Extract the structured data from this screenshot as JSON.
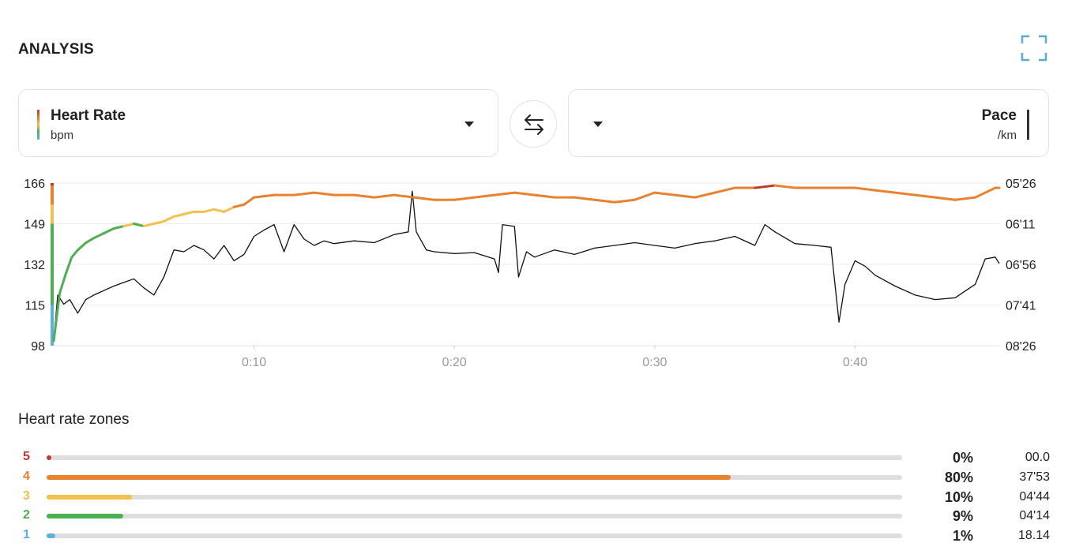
{
  "header": {
    "title": "ANALYSIS",
    "expand_icon": "expand-icon"
  },
  "selectors": {
    "left": {
      "name": "Heart Rate",
      "unit": "bpm"
    },
    "right": {
      "name": "Pace",
      "unit": "/km"
    },
    "swap_icon": "swap-arrows-icon"
  },
  "chart_data": {
    "type": "line",
    "x_ticks": [
      "0:10",
      "0:20",
      "0:30",
      "0:40"
    ],
    "x_tick_minutes": [
      10,
      20,
      30,
      40
    ],
    "x_range_minutes": [
      0,
      47.2
    ],
    "y_left": {
      "label": "Heart Rate",
      "unit": "bpm",
      "ticks": [
        "166",
        "149",
        "132",
        "115",
        "98"
      ],
      "range": [
        98,
        166
      ]
    },
    "y_right": {
      "label": "Pace",
      "unit": "/km",
      "ticks": [
        "05'26",
        "06'11",
        "06'56",
        "07'41",
        "08'26"
      ],
      "range_seconds_per_km": [
        326,
        506
      ]
    },
    "grid": true,
    "zone_colors": {
      "1": "#5bb0dc",
      "2": "#4caf50",
      "3": "#f2c14e",
      "4": "#e8822e",
      "5": "#c0392b"
    },
    "zone_bounds_bpm": [
      [
        98,
        115
      ],
      [
        115,
        149
      ],
      [
        149,
        157
      ],
      [
        157,
        165
      ],
      [
        165,
        166
      ]
    ],
    "series": [
      {
        "name": "Heart Rate",
        "color_by_zone": true,
        "x_minutes": [
          0,
          0.3,
          0.6,
          0.9,
          1.2,
          1.6,
          2.0,
          2.5,
          3.0,
          3.5,
          4.0,
          4.5,
          5.0,
          5.5,
          6.0,
          6.5,
          7.0,
          7.5,
          8.0,
          8.5,
          9.0,
          9.5,
          10.0,
          11.0,
          12.0,
          13.0,
          14.0,
          15.0,
          16.0,
          17.0,
          18.0,
          19.0,
          20.0,
          21.0,
          22.0,
          23.0,
          24.0,
          25.0,
          26.0,
          27.0,
          28.0,
          29.0,
          30.0,
          31.0,
          32.0,
          33.0,
          34.0,
          35.0,
          36.0,
          37.0,
          38.0,
          39.0,
          40.0,
          41.0,
          42.0,
          43.0,
          44.0,
          45.0,
          46.0,
          47.0,
          47.2
        ],
        "y_bpm": [
          100,
          120,
          128,
          135,
          138,
          141,
          143,
          145,
          147,
          148,
          149,
          148,
          149,
          150,
          152,
          153,
          154,
          154,
          155,
          154,
          156,
          157,
          160,
          161,
          161,
          162,
          161,
          161,
          160,
          161,
          160,
          159,
          159,
          160,
          161,
          162,
          161,
          160,
          160,
          159,
          158,
          159,
          162,
          161,
          160,
          162,
          164,
          164,
          165,
          164,
          164,
          164,
          164,
          163,
          162,
          161,
          160,
          159,
          160,
          164,
          164
        ]
      },
      {
        "name": "Pace",
        "x_minutes": [
          0,
          0.2,
          0.5,
          0.8,
          1.2,
          1.6,
          2.0,
          2.5,
          3.0,
          3.5,
          4.0,
          4.5,
          5.0,
          5.5,
          6.0,
          6.5,
          7.0,
          7.5,
          8.0,
          8.5,
          9.0,
          9.5,
          10.0,
          10.5,
          11.0,
          11.5,
          12.0,
          12.5,
          13.0,
          13.5,
          14.0,
          15.0,
          16.0,
          17.0,
          17.7,
          17.9,
          18.1,
          18.6,
          19.0,
          20.0,
          21.0,
          22.0,
          22.2,
          22.4,
          23.0,
          23.2,
          23.6,
          24.0,
          25.0,
          26.0,
          27.0,
          28.0,
          29.0,
          30.0,
          31.0,
          32.0,
          33.0,
          34.0,
          35.0,
          35.5,
          36.0,
          37.0,
          38.0,
          38.8,
          39.2,
          39.5,
          40.0,
          40.5,
          41.0,
          42.0,
          43.0,
          44.0,
          45.0,
          46.0,
          46.5,
          47.0,
          47.2
        ],
        "y_seconds_per_km": [
          500,
          450,
          460,
          455,
          470,
          455,
          450,
          445,
          440,
          436,
          432,
          442,
          450,
          430,
          400,
          402,
          395,
          400,
          410,
          395,
          412,
          405,
          385,
          378,
          372,
          402,
          372,
          388,
          395,
          390,
          393,
          390,
          392,
          383,
          380,
          335,
          380,
          400,
          402,
          404,
          403,
          410,
          425,
          372,
          374,
          430,
          402,
          408,
          400,
          405,
          398,
          395,
          392,
          395,
          398,
          393,
          390,
          385,
          395,
          372,
          380,
          393,
          395,
          397,
          480,
          438,
          412,
          418,
          428,
          440,
          450,
          455,
          453,
          438,
          410,
          408,
          415
        ]
      }
    ]
  },
  "zones": {
    "title": "Heart rate zones",
    "items": [
      {
        "zone": "5",
        "color": "#c0392b",
        "fraction": 0.0,
        "pct": "0%",
        "time": "00.0"
      },
      {
        "zone": "4",
        "color": "#e8822e",
        "fraction": 0.8,
        "pct": "80%",
        "time": "37'53"
      },
      {
        "zone": "3",
        "color": "#f2c14e",
        "fraction": 0.1,
        "pct": "10%",
        "time": "04'44"
      },
      {
        "zone": "2",
        "color": "#4caf50",
        "fraction": 0.09,
        "pct": "9%",
        "time": "04'14"
      },
      {
        "zone": "1",
        "color": "#5bb0dc",
        "fraction": 0.01,
        "pct": "1%",
        "time": "18.14"
      }
    ]
  }
}
